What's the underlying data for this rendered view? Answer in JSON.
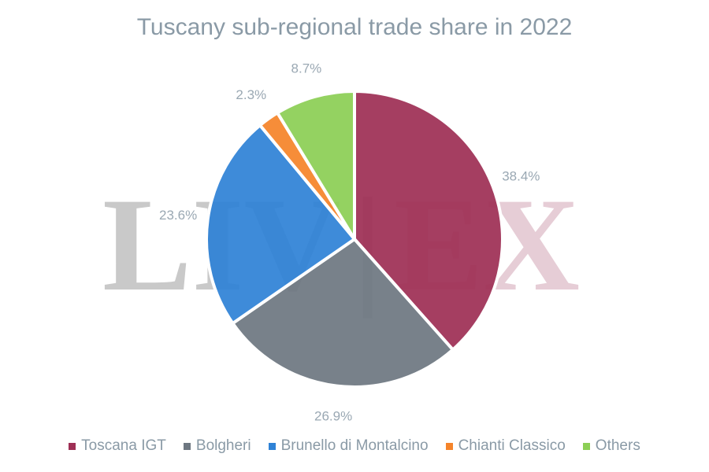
{
  "chart_data": {
    "type": "pie",
    "title": "Tuscany sub-regional trade share in 2022",
    "categories": [
      "Toscana IGT",
      "Bolgheri",
      "Brunello di Montalcino",
      "Chianti Classico",
      "Others"
    ],
    "values": [
      38.4,
      26.9,
      23.6,
      2.3,
      8.7
    ],
    "labels": [
      "38.4%",
      "26.9%",
      "23.6%",
      "2.3%",
      "8.7%"
    ],
    "colors": [
      "#9e2f55",
      "#6e7781",
      "#2f82d6",
      "#f5842a",
      "#8ccf55"
    ],
    "legend": "bottom",
    "unit": "%"
  },
  "watermark": {
    "left_text": "LIV",
    "divider": "|",
    "right_text": "EX"
  },
  "colors": {
    "title": "#8a9aa6",
    "label": "#9aa8b3",
    "watermark_grey": "#c9c9c9",
    "watermark_pink": "#e6cdd6"
  }
}
